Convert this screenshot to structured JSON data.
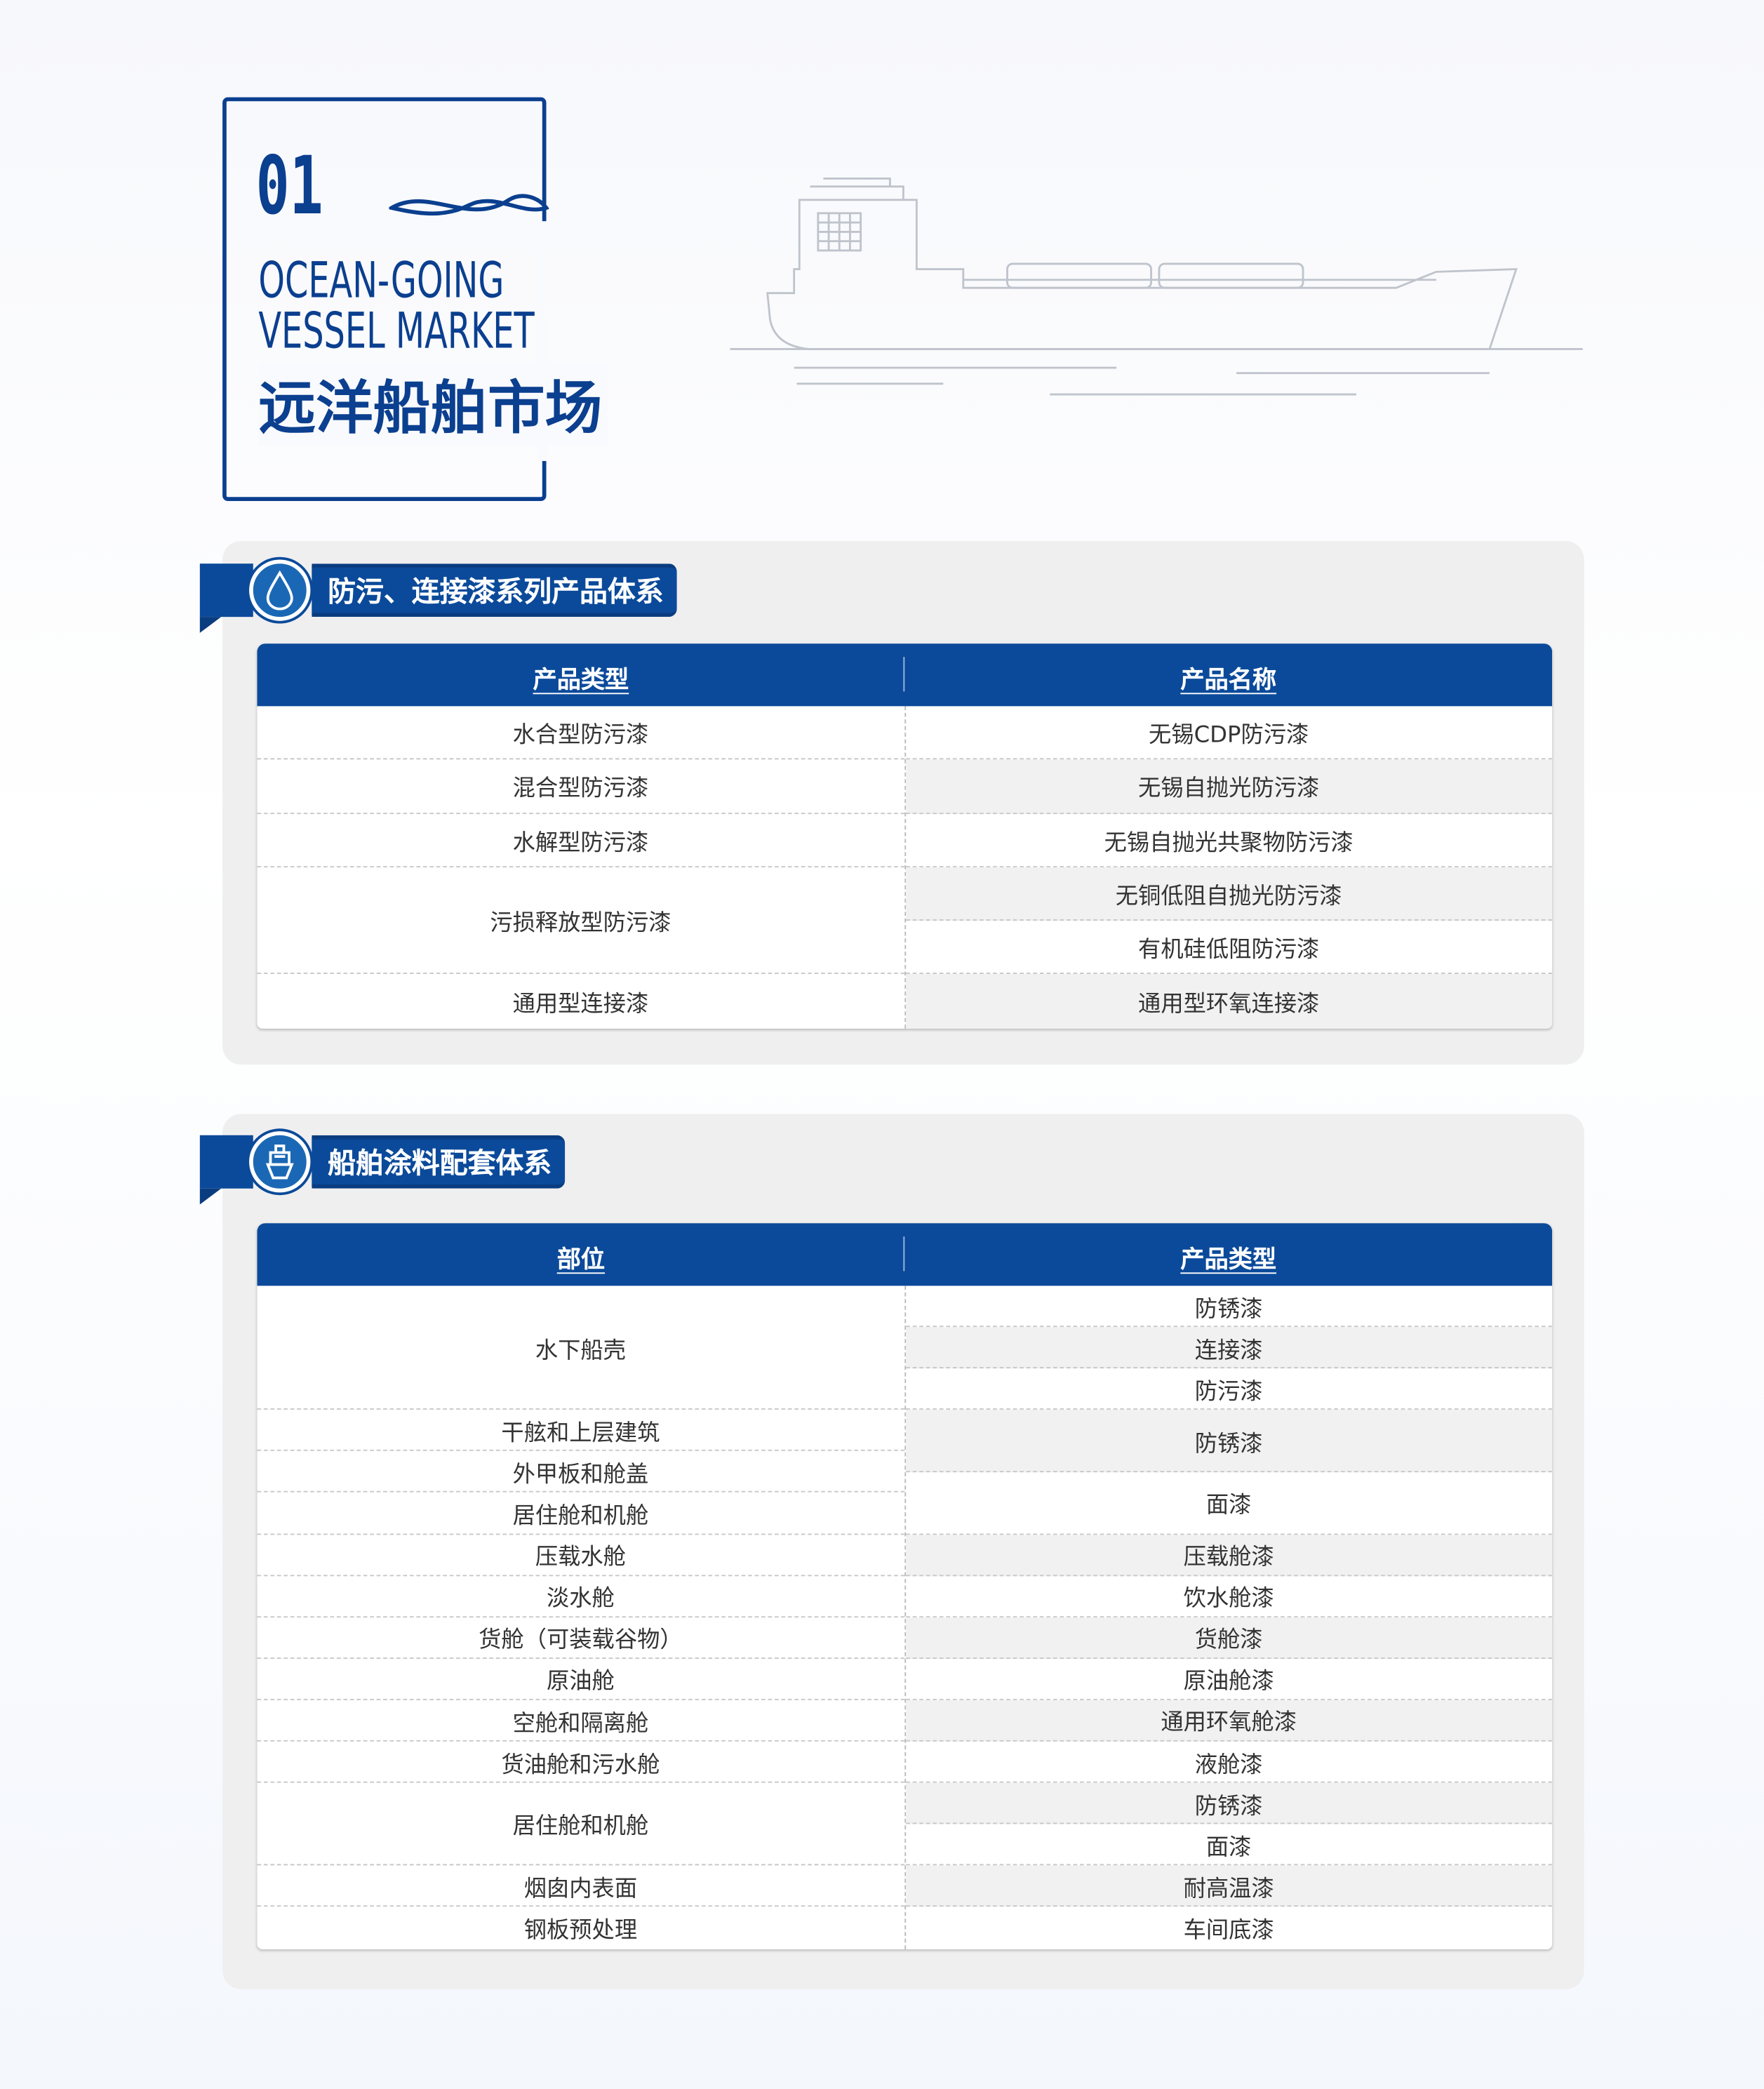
{
  "header": {
    "number": "01",
    "title_en_line1": "OCEAN-GOING",
    "title_en_line2": "VESSEL MARKET",
    "title_zh": "远洋船舶市场"
  },
  "section1": {
    "icon": "water-drop-icon",
    "title": "防污、连接漆系列产品体系",
    "columns": [
      "产品类型",
      "产品名称"
    ],
    "left": [
      {
        "text": "水合型防污漆",
        "span": 1
      },
      {
        "text": "混合型防污漆",
        "span": 1
      },
      {
        "text": "水解型防污漆",
        "span": 1
      },
      {
        "text": "污损释放型防污漆",
        "span": 2
      },
      {
        "text": "通用型连接漆",
        "span": 1
      }
    ],
    "right": [
      {
        "text": "无锡CDP防污漆",
        "span": 1
      },
      {
        "text": "无锡自抛光防污漆",
        "span": 1
      },
      {
        "text": "无锡自抛光共聚物防污漆",
        "span": 1
      },
      {
        "text": "无铜低阻自抛光防污漆",
        "span": 1
      },
      {
        "text": "有机硅低阻防污漆",
        "span": 1
      },
      {
        "text": "通用型环氧连接漆",
        "span": 1
      }
    ]
  },
  "section2": {
    "icon": "ship-icon",
    "title": "船舶涂料配套体系",
    "columns": [
      "部位",
      "产品类型"
    ],
    "left": [
      {
        "text": "水下船壳",
        "span": 3
      },
      {
        "text": "干舷和上层建筑",
        "span": 1
      },
      {
        "text": "外甲板和舱盖",
        "span": 1
      },
      {
        "text": "居住舱和机舱",
        "span": 1
      },
      {
        "text": "压载水舱",
        "span": 1
      },
      {
        "text": "淡水舱",
        "span": 1
      },
      {
        "text": "货舱（可装载谷物）",
        "span": 1
      },
      {
        "text": "原油舱",
        "span": 1
      },
      {
        "text": "空舱和隔离舱",
        "span": 1
      },
      {
        "text": "货油舱和污水舱",
        "span": 1
      },
      {
        "text": "居住舱和机舱",
        "span": 2
      },
      {
        "text": "烟囱内表面",
        "span": 1
      },
      {
        "text": "钢板预处理",
        "span": 1
      }
    ],
    "right": [
      {
        "text": "防锈漆",
        "span": 1
      },
      {
        "text": "连接漆",
        "span": 1
      },
      {
        "text": "防污漆",
        "span": 1
      },
      {
        "text": "防锈漆",
        "span": 1.5
      },
      {
        "text": "面漆",
        "span": 1.5
      },
      {
        "text": "压载舱漆",
        "span": 1
      },
      {
        "text": "饮水舱漆",
        "span": 1
      },
      {
        "text": "货舱漆",
        "span": 1
      },
      {
        "text": "原油舱漆",
        "span": 1
      },
      {
        "text": "通用环氧舱漆",
        "span": 1
      },
      {
        "text": "液舱漆",
        "span": 1
      },
      {
        "text": "防锈漆",
        "span": 1
      },
      {
        "text": "面漆",
        "span": 1
      },
      {
        "text": "耐高温漆",
        "span": 1
      },
      {
        "text": "车间底漆",
        "span": 1
      }
    ]
  },
  "colors": {
    "brand": "#0b4a9a",
    "panel": "#efefef"
  }
}
